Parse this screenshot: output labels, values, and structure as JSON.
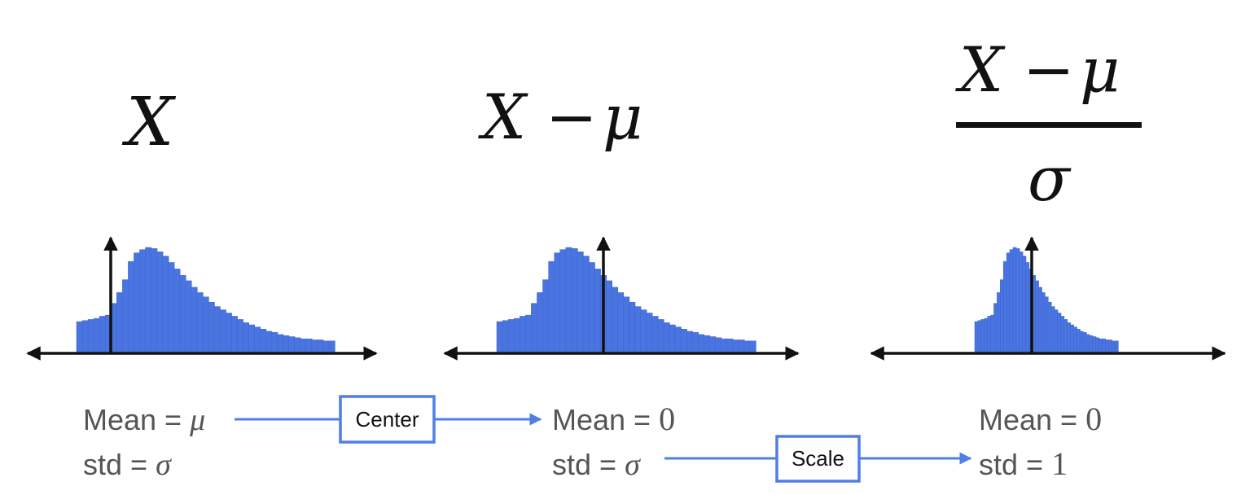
{
  "titles": {
    "left": {
      "var": "X"
    },
    "middle": {
      "var": "X",
      "op": "−",
      "sub": "μ"
    },
    "right": {
      "numerator_var": "X",
      "op": "−",
      "sub": "μ",
      "denominator": "σ"
    }
  },
  "panels": [
    {
      "mean_label": "Mean = ",
      "mean_value": "μ",
      "std_label": "std = ",
      "std_value": "σ"
    },
    {
      "mean_label": "Mean = ",
      "mean_value": "0",
      "std_label": "std = ",
      "std_value": "σ"
    },
    {
      "mean_label": "Mean = ",
      "mean_value": "0",
      "std_label": "std = ",
      "std_value": "1"
    }
  ],
  "steps": {
    "center_label": "Center",
    "scale_label": "Scale"
  },
  "colors": {
    "histogram": "#4a74e0",
    "histogram_edge": "#3c64cc",
    "axis": "#111111",
    "step_arrow": "#4f7fe6",
    "label_text": "#555555"
  },
  "histogram_profile": {
    "shape": "right-skewed",
    "relative_heights": [
      0.28,
      0.29,
      0.3,
      0.31,
      0.33,
      0.34,
      0.45,
      0.55,
      0.67,
      0.84,
      0.92,
      0.95,
      0.97,
      0.96,
      0.93,
      0.89,
      0.83,
      0.77,
      0.71,
      0.66,
      0.6,
      0.55,
      0.51,
      0.46,
      0.42,
      0.39,
      0.36,
      0.33,
      0.3,
      0.27,
      0.25,
      0.23,
      0.21,
      0.19,
      0.18,
      0.16,
      0.15,
      0.14,
      0.13,
      0.12,
      0.12,
      0.11,
      0.11,
      0.1,
      0.1
    ]
  }
}
